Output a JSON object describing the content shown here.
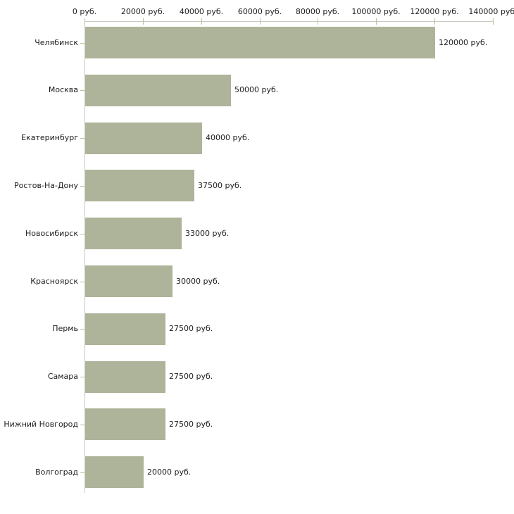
{
  "chart_data": {
    "type": "bar",
    "orientation": "horizontal",
    "title": "",
    "xlabel": "",
    "ylabel": "",
    "unit": "руб.",
    "categories": [
      "Челябинск",
      "Москва",
      "Екатеринбург",
      "Ростов-На-Дону",
      "Новосибирск",
      "Красноярск",
      "Пермь",
      "Самара",
      "Нижний Новгород",
      "Волгоград"
    ],
    "values": [
      120000,
      50000,
      40000,
      37500,
      33000,
      30000,
      27500,
      27500,
      27500,
      20000
    ],
    "value_labels": [
      "120000 руб.",
      "50000 руб.",
      "40000 руб.",
      "37500 руб.",
      "33000 руб.",
      "30000 руб.",
      "27500 руб.",
      "27500 руб.",
      "27500 руб.",
      "20000 руб."
    ],
    "x_ticks": [
      0,
      20000,
      40000,
      60000,
      80000,
      100000,
      120000,
      140000
    ],
    "x_tick_labels": [
      "0 руб.",
      "20000 руб.",
      "40000 руб.",
      "60000 руб.",
      "80000 руб.",
      "100000 руб.",
      "120000 руб.",
      "140000 руб."
    ],
    "xlim": [
      0,
      140000
    ],
    "grid": false,
    "legend": null,
    "axis_position": "top",
    "colors": {
      "bar": "#adb49a",
      "axis_line": "#c9c9c1",
      "tick": "#bfbf9a",
      "text": "#1c1c1c",
      "background": "#ffffff"
    }
  }
}
